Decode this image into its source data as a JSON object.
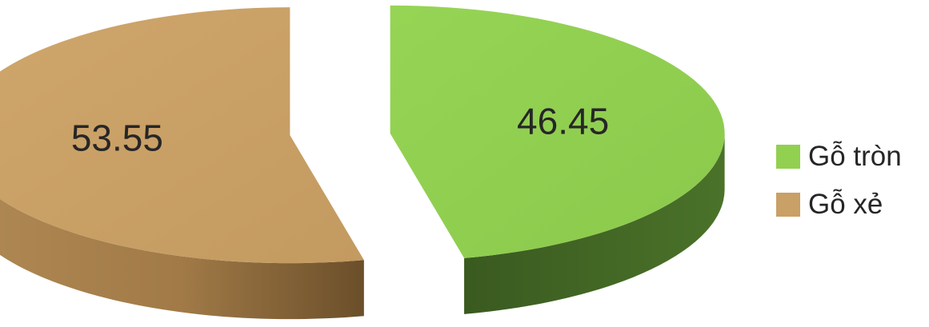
{
  "chart_data": {
    "type": "pie",
    "style": "3d-exploded",
    "title": "",
    "slices": [
      {
        "name": "Gỗ tròn",
        "value": 46.45,
        "label": "46.45",
        "color": "#92d050",
        "side_color": "#3e5f22"
      },
      {
        "name": "Gỗ xẻ",
        "value": 53.55,
        "label": "53.55",
        "color": "#c9a066",
        "side_color": "#8f6b3c"
      }
    ],
    "legend": {
      "position": "right",
      "items": [
        {
          "label": "Gỗ tròn",
          "color": "#92d050"
        },
        {
          "label": "Gỗ xẻ",
          "color": "#c9a066"
        }
      ]
    }
  }
}
